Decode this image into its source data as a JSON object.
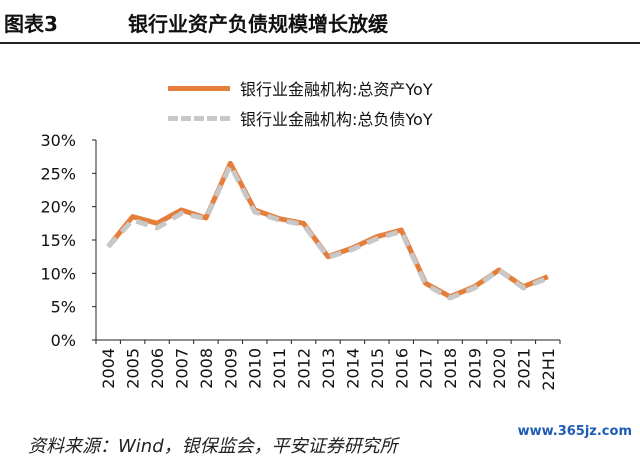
{
  "header": {
    "figure_label": "图表3",
    "title": "银行业资产负债规模增长放缓"
  },
  "chart_data": {
    "type": "line",
    "title": "银行业资产负债规模增长放缓",
    "categories": [
      "2004",
      "2005",
      "2006",
      "2007",
      "2008",
      "2009",
      "2010",
      "2011",
      "2012",
      "2013",
      "2014",
      "2015",
      "2016",
      "2017",
      "2018",
      "2019",
      "2020",
      "2021",
      "22H1"
    ],
    "series": [
      {
        "name": "银行业金融机构:总资产YoY",
        "color": "#e57e3b",
        "style": "solid",
        "values": [
          14.0,
          18.5,
          17.5,
          19.5,
          18.3,
          26.5,
          19.5,
          18.2,
          17.5,
          12.5,
          13.8,
          15.5,
          16.5,
          8.5,
          6.5,
          8.0,
          10.5,
          8.0,
          9.5
        ]
      },
      {
        "name": "银行业金融机构:总负债YoY",
        "color": "#c8c8c8",
        "style": "dashed",
        "values": [
          14.0,
          18.0,
          16.8,
          19.0,
          18.2,
          26.2,
          19.2,
          18.0,
          17.3,
          12.4,
          13.6,
          15.2,
          16.3,
          8.3,
          6.3,
          7.8,
          10.5,
          7.8,
          9.3
        ]
      }
    ],
    "yticks": [
      "0%",
      "5%",
      "10%",
      "15%",
      "20%",
      "25%",
      "30%"
    ],
    "ylim": [
      0,
      30
    ],
    "legend": "top-center",
    "grid": false
  },
  "footer": {
    "source": "资料来源：Wind，银保监会，平安证券研究所",
    "watermark": "www.365jz.com"
  }
}
